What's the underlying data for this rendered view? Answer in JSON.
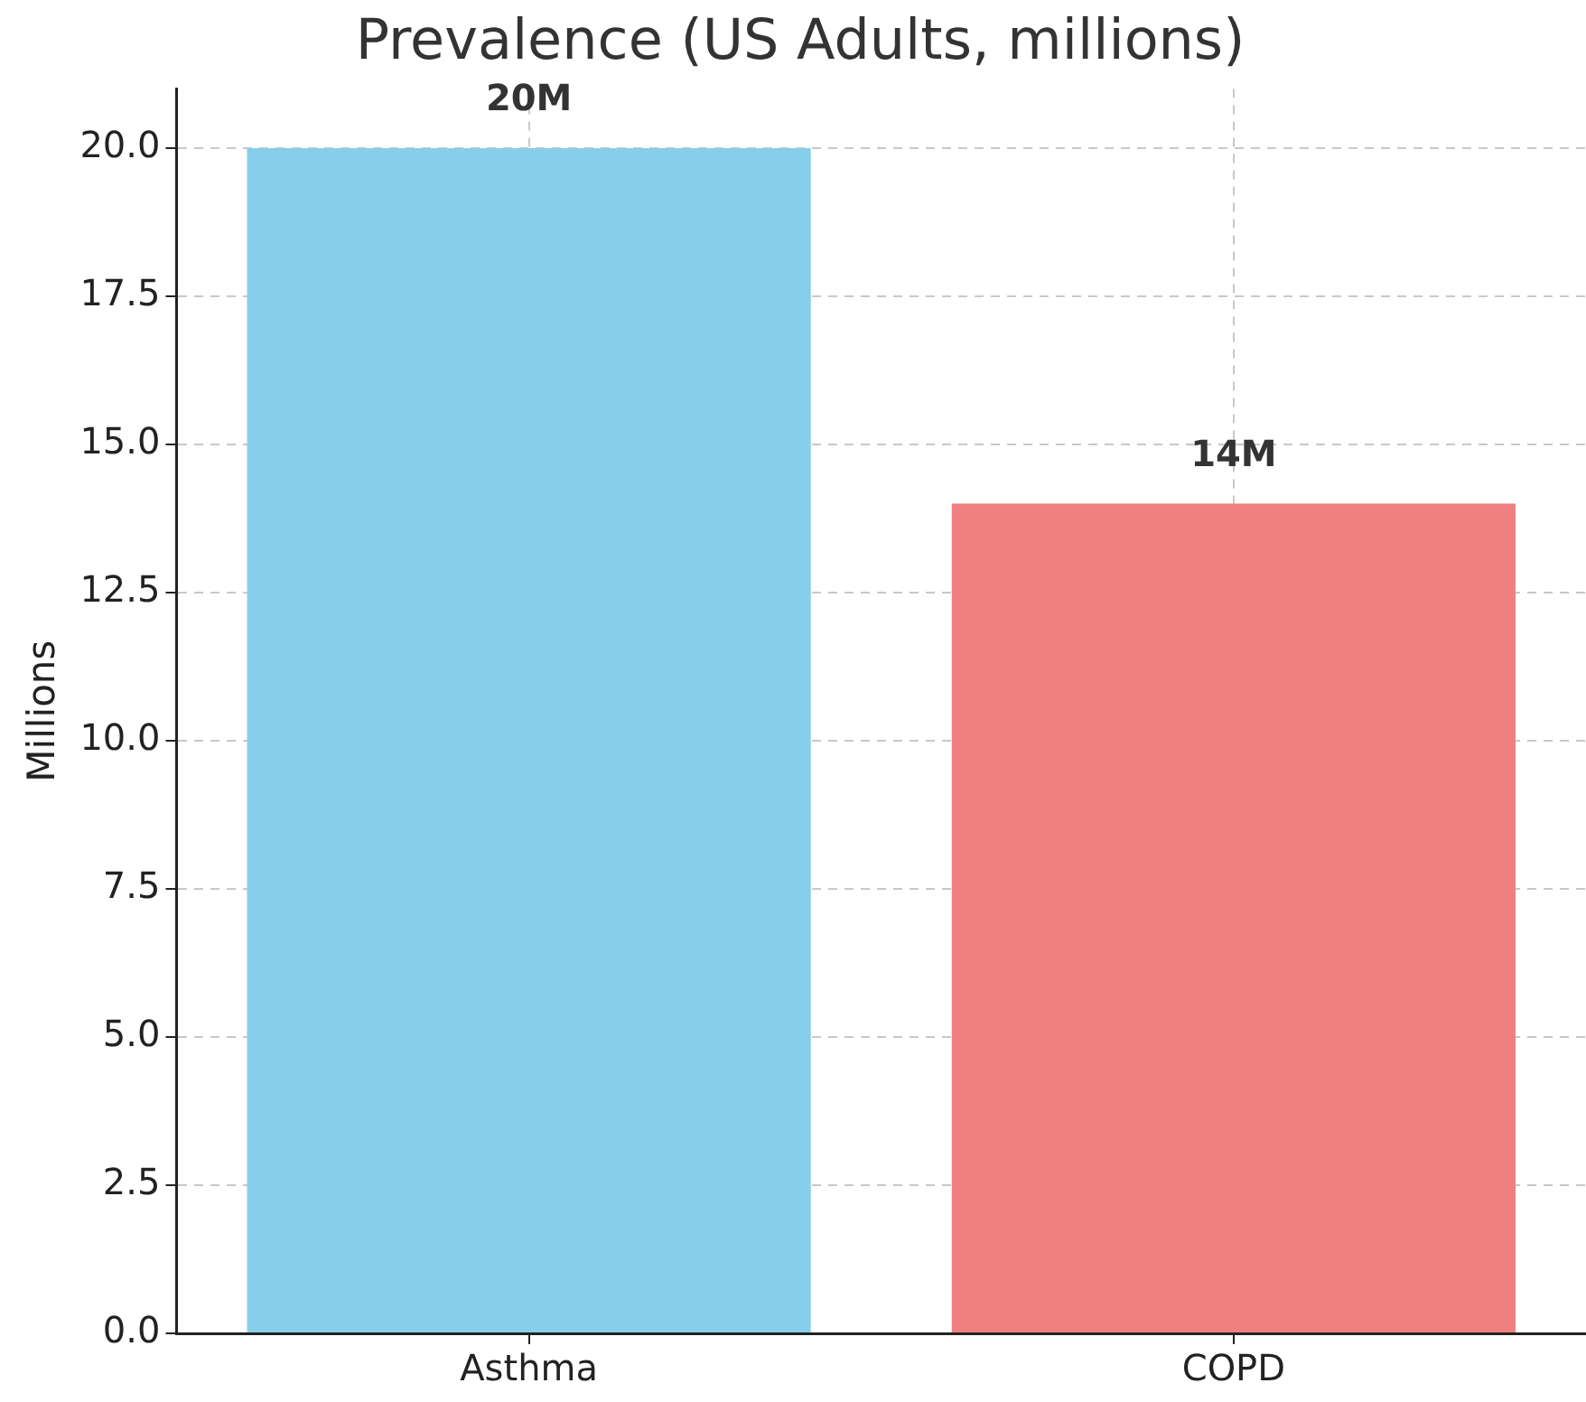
{
  "chart_data": {
    "type": "bar",
    "title": "Prevalence (US Adults, millions)",
    "ylabel": "Millions",
    "categories": [
      "Asthma",
      "COPD"
    ],
    "values": [
      20,
      14
    ],
    "colors": [
      "#87ceeb",
      "#f08080"
    ],
    "value_labels": [
      "20M",
      "14M"
    ],
    "ylim": [
      0,
      21
    ],
    "yticks": [
      {
        "value": 0,
        "label": "0.0"
      },
      {
        "value": 2.5,
        "label": "2.5"
      },
      {
        "value": 5,
        "label": "5.0"
      },
      {
        "value": 7.5,
        "label": "7.5"
      },
      {
        "value": 10,
        "label": "10.0"
      },
      {
        "value": 12.5,
        "label": "12.5"
      },
      {
        "value": 15,
        "label": "15.0"
      },
      {
        "value": 17.5,
        "label": "17.5"
      },
      {
        "value": 20,
        "label": "20.0"
      }
    ],
    "grid": true,
    "legend": false
  }
}
